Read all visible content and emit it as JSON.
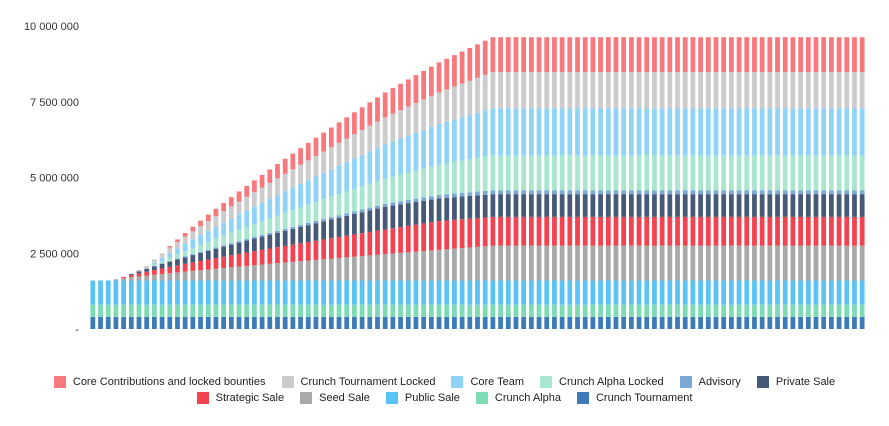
{
  "chart_data": {
    "type": "bar",
    "stacked": true,
    "x_count": 101,
    "ylim": [
      0,
      10000000
    ],
    "y_ticks": [
      {
        "value": 0,
        "label": "-"
      },
      {
        "value": 2500000,
        "label": "2 500 000"
      },
      {
        "value": 5000000,
        "label": "5 000 000"
      },
      {
        "value": 7500000,
        "label": "7 500 000"
      },
      {
        "value": 10000000,
        "label": "10 000 000"
      }
    ],
    "grid": false,
    "legend_position": "bottom",
    "series": [
      {
        "name": "Crunch Tournament",
        "color": "#3d7ab8",
        "start": 0,
        "ramp_end": 0,
        "final": 400000
      },
      {
        "name": "Crunch Alpha",
        "color": "#7bdcb5",
        "start": 0,
        "ramp_end": 0,
        "final": 400000
      },
      {
        "name": "Public Sale",
        "color": "#5bc2f5",
        "start": 0,
        "ramp_end": 0,
        "final": 800000
      },
      {
        "name": "Seed Sale",
        "color": "#a9a9a9",
        "start": 3,
        "ramp_end": 52,
        "final": 1150000
      },
      {
        "name": "Strategic Sale",
        "color": "#f44350",
        "start": 4,
        "ramp_end": 45,
        "final": 950000
      },
      {
        "name": "Private Sale",
        "color": "#465a77",
        "start": 5,
        "ramp_end": 38,
        "final": 750000
      },
      {
        "name": "Advisory",
        "color": "#7aa9d6",
        "start": 6,
        "ramp_end": 52,
        "final": 130000
      },
      {
        "name": "Crunch Alpha Locked",
        "color": "#a8e6cf",
        "start": 8,
        "ramp_end": 52,
        "final": 1150000
      },
      {
        "name": "Core Team",
        "color": "#8fd3f7",
        "start": 8,
        "ramp_end": 52,
        "final": 1550000
      },
      {
        "name": "Crunch Tournament Locked",
        "color": "#cccccc",
        "start": 6,
        "ramp_end": 52,
        "final": 1200000
      },
      {
        "name": "Core Contributions and locked bounties",
        "color": "#f7787d",
        "start": 10,
        "ramp_end": 52,
        "final": 1150000
      }
    ],
    "legend_rows": [
      [
        "Core Contributions and locked bounties",
        "Crunch Tournament Locked",
        "Core Team",
        "Crunch Alpha Locked",
        "Advisory",
        "Private Sale"
      ],
      [
        "Strategic Sale",
        "Seed Sale",
        "Public Sale",
        "Crunch Alpha",
        "Crunch Tournament"
      ]
    ]
  }
}
